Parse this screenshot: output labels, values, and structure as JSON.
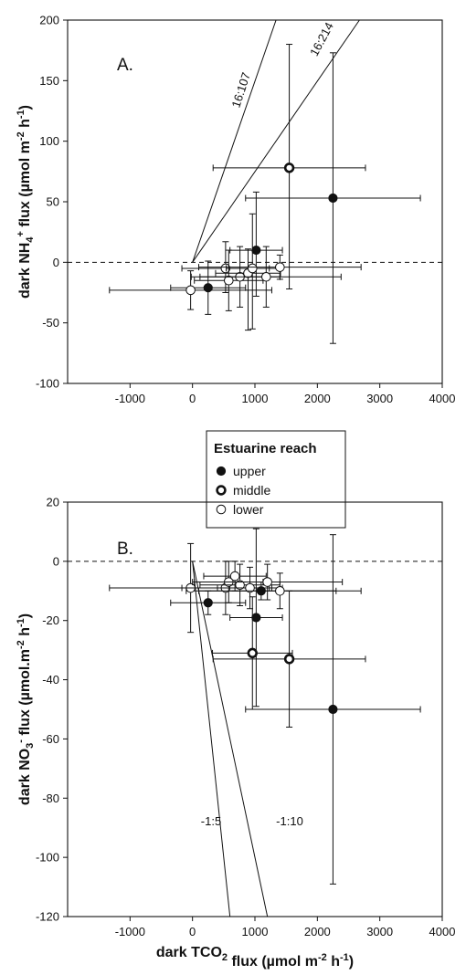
{
  "chart_data": [
    {
      "type": "scatter",
      "panel_label": "A.",
      "ylabel_parts": [
        "dark NH",
        "4",
        "+",
        " flux (µmol m",
        "-2",
        " h",
        "-1",
        ")"
      ],
      "xlim": [
        -2000,
        4000
      ],
      "ylim": [
        -100,
        200
      ],
      "x_ticks": [
        -1000,
        0,
        1000,
        2000,
        3000,
        4000
      ],
      "y_ticks": [
        -100,
        -50,
        0,
        50,
        100,
        150,
        200
      ],
      "zero_line": "dashed",
      "grid": false,
      "ratio_lines": [
        {
          "label": "16:107",
          "slope": 0.1495
        },
        {
          "label": "16:214",
          "slope": 0.0748
        }
      ],
      "points": [
        {
          "reach": "middle",
          "x": 1550,
          "y": 78,
          "xerr": 1220,
          "yerr_low": 100,
          "yerr_high": 102
        },
        {
          "reach": "upper",
          "x": 2250,
          "y": 53,
          "xerr": 1400,
          "yerr_low": 120,
          "yerr_high": 120
        },
        {
          "reach": "upper",
          "x": 1020,
          "y": 10,
          "xerr": 420,
          "yerr_low": 38,
          "yerr_high": 48
        },
        {
          "reach": "upper",
          "x": 250,
          "y": -21,
          "xerr": 600,
          "yerr_low": 22,
          "yerr_high": 22
        },
        {
          "reach": "lower",
          "x": -30,
          "y": -23,
          "xerr": 1300,
          "yerr_low": 16,
          "yerr_high": 16
        },
        {
          "reach": "lower",
          "x": 530,
          "y": -5,
          "xerr": 700,
          "yerr_low": 20,
          "yerr_high": 22
        },
        {
          "reach": "lower",
          "x": 580,
          "y": -15,
          "xerr": 550,
          "yerr_low": 25,
          "yerr_high": 25
        },
        {
          "reach": "lower",
          "x": 760,
          "y": -12,
          "xerr": 640,
          "yerr_low": 25,
          "yerr_high": 25
        },
        {
          "reach": "lower",
          "x": 890,
          "y": -9,
          "xerr": 520,
          "yerr_low": 47,
          "yerr_high": 20
        },
        {
          "reach": "lower",
          "x": 960,
          "y": -5,
          "xerr": 420,
          "yerr_low": 50,
          "yerr_high": 45
        },
        {
          "reach": "lower",
          "x": 1180,
          "y": -12,
          "xerr": 1200,
          "yerr_low": 25,
          "yerr_high": 25
        },
        {
          "reach": "lower",
          "x": 1400,
          "y": -4,
          "xerr": 1300,
          "yerr_low": 10,
          "yerr_high": 10
        }
      ]
    },
    {
      "type": "scatter",
      "panel_label": "B.",
      "ylabel_parts": [
        "dark NO",
        "3",
        "-",
        " flux (µmol.m",
        "-2",
        " h",
        "-1",
        ")"
      ],
      "xlabel_parts": [
        "dark TCO",
        "2",
        "",
        " flux (µmol m",
        "-2",
        " h",
        "-1",
        ")"
      ],
      "xlim": [
        -2000,
        4000
      ],
      "ylim": [
        -120,
        20
      ],
      "x_ticks": [
        -1000,
        0,
        1000,
        2000,
        3000,
        4000
      ],
      "y_ticks": [
        -120,
        -100,
        -80,
        -60,
        -40,
        -20,
        0,
        20
      ],
      "zero_line": "dashed",
      "grid": false,
      "ratio_lines": [
        {
          "label": "-1:5",
          "slope": -0.2
        },
        {
          "label": "-1:10",
          "slope": -0.1
        }
      ],
      "points": [
        {
          "reach": "upper",
          "x": 2250,
          "y": -50,
          "xerr": 1400,
          "yerr_low": 59,
          "yerr_high": 59
        },
        {
          "reach": "upper",
          "x": 1020,
          "y": -19,
          "xerr": 420,
          "yerr_low": 30,
          "yerr_high": 30
        },
        {
          "reach": "upper",
          "x": 250,
          "y": -14,
          "xerr": 600,
          "yerr_low": 4,
          "yerr_high": 4
        },
        {
          "reach": "upper",
          "x": 1100,
          "y": -10,
          "xerr": 1200,
          "yerr_low": 3,
          "yerr_high": 3
        },
        {
          "reach": "middle",
          "x": 1550,
          "y": -33,
          "xerr": 1220,
          "yerr_low": 23,
          "yerr_high": 23
        },
        {
          "reach": "middle",
          "x": 960,
          "y": -31,
          "xerr": 640,
          "yerr_low": 19,
          "yerr_high": 19
        },
        {
          "reach": "lower",
          "x": -30,
          "y": -9,
          "xerr": 1300,
          "yerr_low": 15,
          "yerr_high": 15
        },
        {
          "reach": "lower",
          "x": 530,
          "y": -9,
          "xerr": 700,
          "yerr_low": 9,
          "yerr_high": 9
        },
        {
          "reach": "lower",
          "x": 580,
          "y": -7,
          "xerr": 550,
          "yerr_low": 7,
          "yerr_high": 7
        },
        {
          "reach": "lower",
          "x": 680,
          "y": -5,
          "xerr": 500,
          "yerr_low": 5,
          "yerr_high": 5
        },
        {
          "reach": "lower",
          "x": 760,
          "y": -8,
          "xerr": 640,
          "yerr_low": 7,
          "yerr_high": 7
        },
        {
          "reach": "lower",
          "x": 920,
          "y": -9,
          "xerr": 520,
          "yerr_low": 7,
          "yerr_high": 7
        },
        {
          "reach": "lower",
          "x": 1200,
          "y": -7,
          "xerr": 1200,
          "yerr_low": 6,
          "yerr_high": 6
        },
        {
          "reach": "lower",
          "x": 1400,
          "y": -10,
          "xerr": 1300,
          "yerr_low": 6,
          "yerr_high": 6
        }
      ]
    }
  ],
  "legend": {
    "title": "Estuarine reach",
    "items": [
      {
        "key": "upper",
        "label": "upper",
        "marker": "filled"
      },
      {
        "key": "middle",
        "label": "middle",
        "marker": "thick-open"
      },
      {
        "key": "lower",
        "label": "lower",
        "marker": "open"
      }
    ]
  },
  "colors": {
    "ink": "#111111",
    "background": "#ffffff"
  }
}
